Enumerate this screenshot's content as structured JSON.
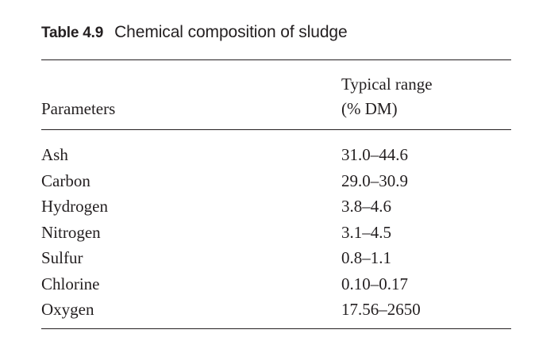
{
  "caption": {
    "label": "Table 4.9",
    "title": "Chemical composition of sludge"
  },
  "table": {
    "headers": {
      "parameter": "Parameters",
      "range_line1": "Typical range",
      "range_line2": "(% DM)"
    },
    "rows": [
      {
        "parameter": "Ash",
        "range": "31.0–44.6"
      },
      {
        "parameter": "Carbon",
        "range": "29.0–30.9"
      },
      {
        "parameter": "Hydrogen",
        "range": "3.8–4.6"
      },
      {
        "parameter": "Nitrogen",
        "range": "3.1–4.5"
      },
      {
        "parameter": "Sulfur",
        "range": "0.8–1.1"
      },
      {
        "parameter": "Chlorine",
        "range": "0.10–0.17"
      },
      {
        "parameter": "Oxygen",
        "range": "17.56–2650"
      }
    ]
  }
}
